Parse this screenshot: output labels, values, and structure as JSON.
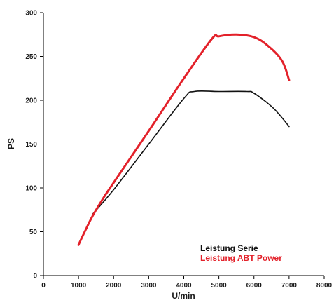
{
  "chart_data": {
    "type": "line",
    "title": "",
    "xlabel": "U/min",
    "ylabel": "PS",
    "xlim": [
      0,
      8000
    ],
    "ylim": [
      0,
      300
    ],
    "grid": false,
    "legend_position": "bottom-right",
    "x_ticks": [
      "0",
      "1000",
      "2000",
      "3000",
      "4000",
      "5000",
      "6000",
      "7000",
      "8000"
    ],
    "y_ticks": [
      "0",
      "50",
      "100",
      "150",
      "200",
      "250",
      "300"
    ],
    "series": [
      {
        "name": "Leistung Serie",
        "color": "#111111",
        "x": [
          1400,
          2000,
          3000,
          4000,
          4300,
          5000,
          5800,
          6000,
          6500,
          6800,
          7000
        ],
        "y": [
          70,
          98,
          150,
          202,
          210,
          210,
          210,
          208,
          193,
          180,
          170
        ]
      },
      {
        "name": "Leistung ABT Power",
        "color": "#e3212a",
        "x": [
          1000,
          1200,
          1400,
          1700,
          2000,
          3000,
          4000,
          4800,
          5000,
          5500,
          6000,
          6400,
          6800,
          7000
        ],
        "y": [
          35,
          52,
          68,
          88,
          106,
          165,
          225,
          270,
          273,
          275,
          272,
          262,
          245,
          223
        ]
      }
    ]
  }
}
